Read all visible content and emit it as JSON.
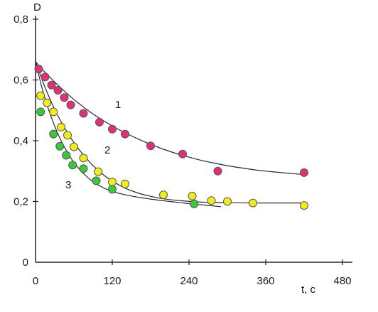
{
  "chart_data": {
    "type": "scatter",
    "title": "",
    "xlabel": "t, c",
    "ylabel": "D",
    "xlim": [
      0,
      480
    ],
    "ylim": [
      0,
      0.8
    ],
    "x_ticks": [
      0,
      120,
      240,
      360,
      480
    ],
    "x_tick_labels": [
      "0",
      "120",
      "240",
      "360",
      "480"
    ],
    "y_ticks": [
      0,
      0.2,
      0.4,
      0.6,
      0.8
    ],
    "y_tick_labels": [
      "0",
      "0,2",
      "0,4",
      "0,6",
      "0,8"
    ],
    "grid": false,
    "legend": "none",
    "series": [
      {
        "name": "1",
        "color": "#e0307a",
        "points": [
          [
            5,
            0.636
          ],
          [
            15,
            0.61
          ],
          [
            25,
            0.583
          ],
          [
            35,
            0.566
          ],
          [
            45,
            0.542
          ],
          [
            55,
            0.518
          ],
          [
            75,
            0.49
          ],
          [
            100,
            0.461
          ],
          [
            120,
            0.438
          ],
          [
            140,
            0.422
          ],
          [
            180,
            0.383
          ],
          [
            230,
            0.356
          ],
          [
            285,
            0.3
          ],
          [
            420,
            0.295
          ]
        ],
        "fit": [
          [
            0,
            0.66
          ],
          [
            20,
            0.614
          ],
          [
            40,
            0.573
          ],
          [
            60,
            0.536
          ],
          [
            80,
            0.503
          ],
          [
            100,
            0.474
          ],
          [
            120,
            0.449
          ],
          [
            140,
            0.426
          ],
          [
            160,
            0.406
          ],
          [
            180,
            0.388
          ],
          [
            200,
            0.372
          ],
          [
            220,
            0.358
          ],
          [
            240,
            0.346
          ],
          [
            260,
            0.335
          ],
          [
            280,
            0.326
          ],
          [
            300,
            0.318
          ],
          [
            320,
            0.311
          ],
          [
            340,
            0.305
          ],
          [
            360,
            0.3
          ],
          [
            380,
            0.296
          ],
          [
            400,
            0.292
          ],
          [
            420,
            0.289
          ]
        ]
      },
      {
        "name": "2",
        "color": "#f2ec1c",
        "points": [
          [
            8,
            0.548
          ],
          [
            18,
            0.525
          ],
          [
            28,
            0.495
          ],
          [
            40,
            0.445
          ],
          [
            50,
            0.418
          ],
          [
            60,
            0.38
          ],
          [
            75,
            0.343
          ],
          [
            98,
            0.298
          ],
          [
            120,
            0.264
          ],
          [
            140,
            0.258
          ],
          [
            200,
            0.222
          ],
          [
            245,
            0.218
          ],
          [
            275,
            0.203
          ],
          [
            300,
            0.2
          ],
          [
            340,
            0.195
          ],
          [
            420,
            0.187
          ]
        ],
        "fit": [
          [
            0,
            0.66
          ],
          [
            15,
            0.575
          ],
          [
            30,
            0.503
          ],
          [
            45,
            0.444
          ],
          [
            60,
            0.394
          ],
          [
            75,
            0.353
          ],
          [
            90,
            0.318
          ],
          [
            105,
            0.29
          ],
          [
            120,
            0.267
          ],
          [
            140,
            0.244
          ],
          [
            160,
            0.228
          ],
          [
            180,
            0.217
          ],
          [
            200,
            0.209
          ],
          [
            230,
            0.202
          ],
          [
            260,
            0.198
          ],
          [
            300,
            0.196
          ],
          [
            350,
            0.195
          ],
          [
            420,
            0.195
          ]
        ]
      },
      {
        "name": "3",
        "color": "#3cc83c",
        "points": [
          [
            8,
            0.495
          ],
          [
            28,
            0.422
          ],
          [
            38,
            0.382
          ],
          [
            48,
            0.352
          ],
          [
            58,
            0.32
          ],
          [
            75,
            0.308
          ],
          [
            95,
            0.268
          ],
          [
            120,
            0.24
          ],
          [
            248,
            0.192
          ]
        ],
        "fit": [
          [
            0,
            0.66
          ],
          [
            10,
            0.575
          ],
          [
            20,
            0.505
          ],
          [
            30,
            0.448
          ],
          [
            40,
            0.4
          ],
          [
            55,
            0.344
          ],
          [
            70,
            0.303
          ],
          [
            85,
            0.273
          ],
          [
            100,
            0.252
          ],
          [
            120,
            0.233
          ],
          [
            150,
            0.218
          ],
          [
            180,
            0.208
          ],
          [
            210,
            0.2
          ],
          [
            240,
            0.193
          ],
          [
            265,
            0.188
          ],
          [
            290,
            0.183
          ]
        ]
      }
    ]
  }
}
